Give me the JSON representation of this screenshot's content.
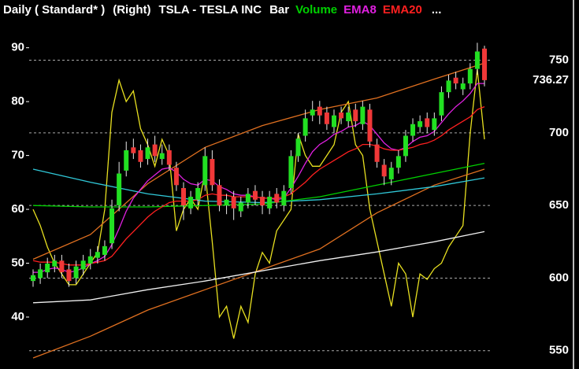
{
  "chart_data": {
    "type": "candlestick",
    "title_parts": [
      "Daily ( Standard* )",
      "(Right)",
      "TSLA - TESLA INC",
      "Bar"
    ],
    "more": "...",
    "ylim": [
      32.4,
      92
    ],
    "yticks": [
      40,
      50,
      60,
      70,
      80,
      90
    ],
    "y2lim": [
      545,
      766
    ],
    "y2ticks": [
      550,
      600,
      650,
      700,
      750
    ],
    "grid": true,
    "last_price": 736.27,
    "up_color": "#22e022",
    "down_color": "#f03838",
    "wick_color": "#e8e8e8",
    "candles": {
      "open": [
        598,
        600,
        604,
        608,
        612,
        606,
        600,
        606,
        610,
        614,
        616,
        624,
        650,
        674,
        690,
        688,
        682,
        692,
        682,
        688,
        676,
        662,
        648,
        654,
        664,
        682,
        664,
        650,
        656,
        646,
        652,
        660,
        656,
        648,
        658,
        650,
        662,
        684,
        698,
        712,
        718,
        714,
        704,
        714,
        708,
        716,
        706,
        716,
        692,
        678,
        668,
        676,
        684,
        698,
        704,
        710,
        702,
        712,
        728,
        738,
        730,
        734,
        744,
        758
      ],
      "high": [
        606,
        610,
        614,
        616,
        616,
        610,
        612,
        616,
        620,
        622,
        626,
        654,
        680,
        694,
        696,
        692,
        696,
        698,
        692,
        692,
        680,
        666,
        660,
        666,
        690,
        688,
        668,
        658,
        660,
        656,
        662,
        664,
        660,
        660,
        662,
        664,
        688,
        700,
        716,
        722,
        722,
        718,
        716,
        718,
        718,
        720,
        722,
        720,
        696,
        682,
        680,
        688,
        702,
        710,
        712,
        714,
        714,
        732,
        740,
        742,
        738,
        748,
        762,
        760
      ],
      "low": [
        594,
        596,
        600,
        604,
        600,
        594,
        596,
        602,
        606,
        610,
        612,
        620,
        646,
        670,
        682,
        676,
        678,
        680,
        678,
        674,
        660,
        640,
        644,
        650,
        660,
        660,
        646,
        644,
        640,
        642,
        648,
        650,
        644,
        644,
        648,
        646,
        658,
        680,
        694,
        708,
        706,
        702,
        700,
        706,
        704,
        704,
        702,
        690,
        676,
        664,
        664,
        672,
        680,
        694,
        700,
        700,
        698,
        708,
        724,
        730,
        726,
        730,
        740,
        732
      ],
      "close": [
        602,
        606,
        610,
        612,
        604,
        598,
        608,
        612,
        615,
        618,
        622,
        648,
        672,
        688,
        686,
        680,
        690,
        684,
        686,
        678,
        664,
        650,
        656,
        662,
        684,
        664,
        650,
        654,
        648,
        652,
        658,
        654,
        650,
        656,
        652,
        660,
        684,
        696,
        710,
        716,
        712,
        706,
        712,
        710,
        714,
        708,
        718,
        694,
        680,
        670,
        676,
        684,
        698,
        706,
        708,
        704,
        710,
        728,
        736,
        734,
        734,
        744,
        756,
        736.27
      ]
    },
    "series": [
      {
        "name": "Volume",
        "color": "#00d000",
        "axis": "y2",
        "x": [
          0,
          8,
          16,
          24,
          32,
          40,
          48,
          56,
          63
        ],
        "values": [
          650,
          649,
          649,
          650,
          651,
          656,
          664,
          672,
          679
        ]
      },
      {
        "name": "EMA8",
        "color": "#e020e0",
        "axis": "y2",
        "values": [
          604,
          604,
          606,
          607,
          606,
          604,
          605,
          607,
          610,
          612,
          615,
          623,
          634,
          646,
          655,
          661,
          667,
          671,
          675,
          676,
          673,
          668,
          665,
          664,
          668,
          667,
          663,
          661,
          658,
          657,
          657,
          656,
          655,
          655,
          654,
          655,
          662,
          670,
          679,
          687,
          692,
          695,
          699,
          701,
          704,
          705,
          708,
          705,
          699,
          693,
          689,
          688,
          690,
          694,
          697,
          698,
          701,
          707,
          713,
          718,
          722,
          727,
          734,
          734
        ]
      },
      {
        "name": "EMA20",
        "color": "#ff2020",
        "axis": "y2",
        "values": [
          612,
          611,
          611,
          611,
          610,
          609,
          609,
          609,
          610,
          611,
          612,
          615,
          621,
          627,
          632,
          637,
          642,
          646,
          649,
          652,
          653,
          653,
          653,
          654,
          657,
          658,
          657,
          657,
          656,
          656,
          656,
          656,
          655,
          655,
          655,
          656,
          658,
          662,
          666,
          671,
          675,
          678,
          681,
          684,
          687,
          689,
          692,
          692,
          691,
          689,
          688,
          688,
          689,
          690,
          692,
          693,
          695,
          698,
          702,
          705,
          708,
          711,
          716,
          718
        ]
      }
    ],
    "lines": [
      {
        "color": "#e8e020",
        "axis": "y",
        "values": [
          60,
          57,
          53,
          50,
          48,
          46,
          46,
          48,
          50,
          52,
          60,
          78,
          84,
          80,
          82,
          75,
          72,
          68,
          73,
          70,
          56,
          60,
          62,
          60,
          67,
          54,
          40,
          42,
          36,
          42,
          39,
          48,
          52,
          50,
          56,
          58,
          60,
          74,
          70,
          68,
          68,
          70,
          72,
          78,
          80,
          72,
          70,
          60,
          54,
          48,
          42,
          50,
          48,
          40,
          48,
          47,
          49,
          50,
          53,
          55,
          57,
          74,
          86,
          73
        ]
      },
      {
        "color": "#e07020",
        "axis": "y2",
        "x": [
          0,
          8,
          16,
          24,
          32,
          40,
          48,
          56,
          63
        ],
        "values": [
          613,
          630,
          665,
          690,
          705,
          716,
          724,
          737,
          748
        ]
      },
      {
        "color": "#e07020",
        "axis": "y2",
        "x": [
          0,
          8,
          16,
          24,
          32,
          40,
          48,
          56,
          63
        ],
        "values": [
          545,
          560,
          578,
          592,
          606,
          620,
          645,
          664,
          675
        ]
      },
      {
        "color": "#30c8d8",
        "axis": "y2",
        "x": [
          0,
          8,
          16,
          24,
          32,
          40,
          48,
          56,
          63
        ],
        "values": [
          675,
          666,
          658,
          653,
          652,
          654,
          658,
          663,
          669
        ]
      },
      {
        "color": "#f0f0f0",
        "axis": "y2",
        "x": [
          0,
          8,
          16,
          24,
          32,
          40,
          48,
          56,
          63
        ],
        "values": [
          583,
          585,
          592,
          598,
          605,
          612,
          618,
          625,
          632
        ]
      }
    ]
  }
}
